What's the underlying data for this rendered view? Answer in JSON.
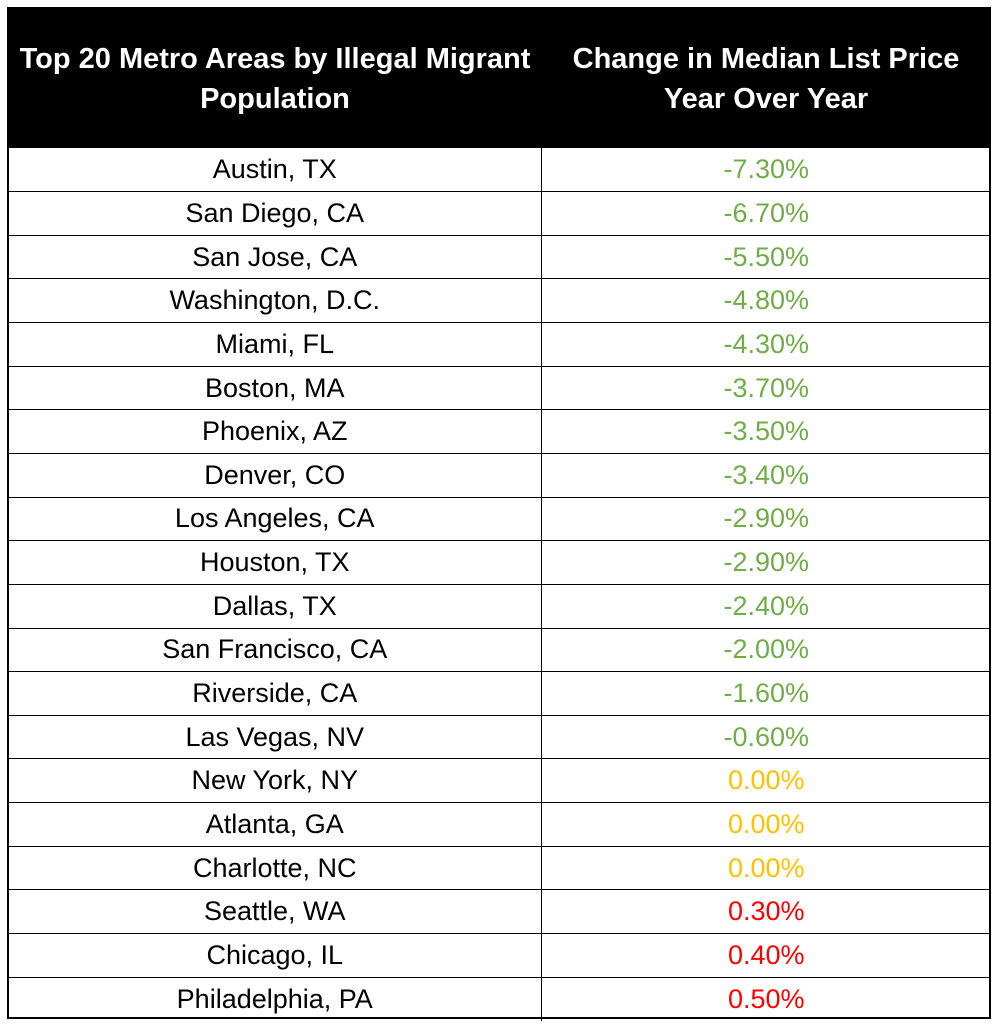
{
  "chart_data": {
    "type": "table",
    "columns": [
      "Top 20 Metro Areas by Illegal Migrant Population",
      "Change in Median List Price Year Over Year"
    ],
    "rows": [
      {
        "metro": "Austin, TX",
        "change": "-7.30%",
        "value": -7.3
      },
      {
        "metro": "San Diego, CA",
        "change": "-6.70%",
        "value": -6.7
      },
      {
        "metro": "San Jose, CA",
        "change": "-5.50%",
        "value": -5.5
      },
      {
        "metro": "Washington, D.C.",
        "change": "-4.80%",
        "value": -4.8
      },
      {
        "metro": "Miami, FL",
        "change": "-4.30%",
        "value": -4.3
      },
      {
        "metro": "Boston, MA",
        "change": "-3.70%",
        "value": -3.7
      },
      {
        "metro": "Phoenix, AZ",
        "change": "-3.50%",
        "value": -3.5
      },
      {
        "metro": "Denver, CO",
        "change": "-3.40%",
        "value": -3.4
      },
      {
        "metro": "Los Angeles, CA",
        "change": "-2.90%",
        "value": -2.9
      },
      {
        "metro": "Houston, TX",
        "change": "-2.90%",
        "value": -2.9
      },
      {
        "metro": "Dallas, TX",
        "change": "-2.40%",
        "value": -2.4
      },
      {
        "metro": "San Francisco, CA",
        "change": "-2.00%",
        "value": -2.0
      },
      {
        "metro": "Riverside, CA",
        "change": "-1.60%",
        "value": -1.6
      },
      {
        "metro": "Las Vegas, NV",
        "change": "-0.60%",
        "value": -0.6
      },
      {
        "metro": "New York, NY",
        "change": "0.00%",
        "value": 0.0
      },
      {
        "metro": "Atlanta, GA",
        "change": "0.00%",
        "value": 0.0
      },
      {
        "metro": "Charlotte, NC",
        "change": "0.00%",
        "value": 0.0
      },
      {
        "metro": "Seattle, WA",
        "change": "0.30%",
        "value": 0.3
      },
      {
        "metro": "Chicago, IL",
        "change": "0.40%",
        "value": 0.4
      },
      {
        "metro": "Philadelphia, PA",
        "change": "0.50%",
        "value": 0.5
      }
    ],
    "colors": {
      "negative": "#70ad47",
      "zero": "#ffc000",
      "positive": "#ff0000",
      "header_bg": "#000000",
      "header_text": "#ffffff"
    }
  }
}
